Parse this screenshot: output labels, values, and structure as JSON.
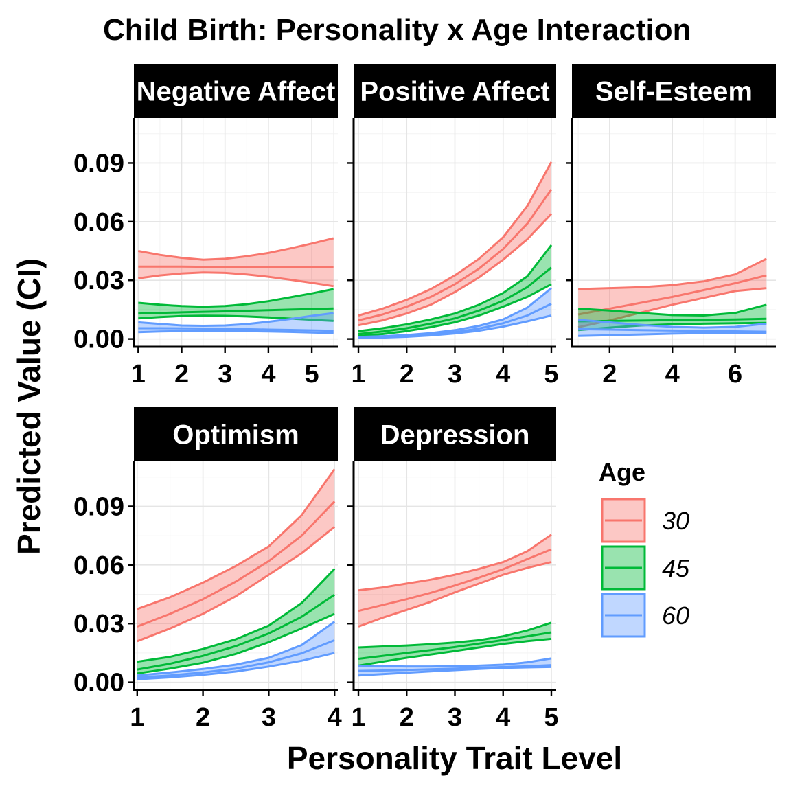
{
  "chart_data": {
    "type": "line",
    "title": "Child Birth: Personality x Age Interaction",
    "xlabel": "Personality Trait Level",
    "ylabel": "Predicted Value (CI)",
    "ylim": [
      -0.004,
      0.113
    ],
    "y_ticks": [
      0.0,
      0.03,
      0.06,
      0.09
    ],
    "y_tick_labels": [
      "0.00",
      "0.03",
      "0.06",
      "0.09"
    ],
    "legend": {
      "title": "Age",
      "position": "right",
      "entries": [
        {
          "label": "30",
          "color": "#F8766D"
        },
        {
          "label": "45",
          "color": "#00BA38"
        },
        {
          "label": "60",
          "color": "#619CFF"
        }
      ]
    },
    "panels": [
      {
        "name": "Negative Affect",
        "strip_label": "Negative Affect",
        "xlim": [
          0.9,
          5.6
        ],
        "x_ticks": [
          1,
          2,
          3,
          4,
          5
        ],
        "x": [
          1,
          1.5,
          2,
          2.5,
          3,
          3.5,
          4,
          4.5,
          5,
          5.5
        ],
        "series": [
          {
            "name": "30",
            "color": "#F8766D",
            "fit": [
              0.037,
              0.037,
              0.037,
              0.0369,
              0.0369,
              0.0369,
              0.0368,
              0.0368,
              0.0368,
              0.0368
            ],
            "lower": [
              0.031,
              0.0325,
              0.0335,
              0.034,
              0.0338,
              0.033,
              0.0318,
              0.0303,
              0.0287,
              0.027
            ],
            "upper": [
              0.045,
              0.043,
              0.0415,
              0.0405,
              0.041,
              0.0423,
              0.044,
              0.0463,
              0.0488,
              0.0515
            ]
          },
          {
            "name": "45",
            "color": "#00BA38",
            "fit": [
              0.013,
              0.0133,
              0.0136,
              0.0139,
              0.0141,
              0.0144,
              0.0147,
              0.015,
              0.0153,
              0.0156
            ],
            "lower": [
              0.0105,
              0.0112,
              0.0117,
              0.0119,
              0.0118,
              0.0115,
              0.011,
              0.0104,
              0.0098,
              0.0092
            ],
            "upper": [
              0.0185,
              0.0175,
              0.0168,
              0.0165,
              0.0168,
              0.0178,
              0.0193,
              0.0213,
              0.0233,
              0.0255
            ]
          },
          {
            "name": "60",
            "color": "#619CFF",
            "fit": [
              0.0055,
              0.0055,
              0.0054,
              0.0053,
              0.0052,
              0.005,
              0.0048,
              0.0046,
              0.0044,
              0.0042
            ],
            "lower": [
              0.0035,
              0.0038,
              0.004,
              0.0041,
              0.0041,
              0.004,
              0.0038,
              0.0036,
              0.0033,
              0.003
            ],
            "upper": [
              0.0085,
              0.0077,
              0.0069,
              0.0067,
              0.0069,
              0.0076,
              0.0088,
              0.0102,
              0.0118,
              0.0132
            ]
          }
        ]
      },
      {
        "name": "Positive Affect",
        "strip_label": "Positive Affect",
        "xlim": [
          0.9,
          5.1
        ],
        "x_ticks": [
          1,
          2,
          3,
          4,
          5
        ],
        "x": [
          1,
          1.5,
          2,
          2.5,
          3,
          3.5,
          4,
          4.5,
          5
        ],
        "series": [
          {
            "name": "30",
            "color": "#F8766D",
            "fit": [
              0.0095,
              0.0125,
              0.0165,
              0.0215,
              0.028,
              0.036,
              0.046,
              0.059,
              0.0765
            ],
            "lower": [
              0.007,
              0.0095,
              0.013,
              0.0175,
              0.024,
              0.0315,
              0.0405,
              0.051,
              0.064
            ],
            "upper": [
              0.012,
              0.0155,
              0.02,
              0.0255,
              0.0325,
              0.041,
              0.052,
              0.068,
              0.0905
            ]
          },
          {
            "name": "45",
            "color": "#00BA38",
            "fit": [
              0.0025,
              0.0038,
              0.0055,
              0.0078,
              0.0105,
              0.0145,
              0.0195,
              0.0265,
              0.0365
            ],
            "lower": [
              0.0015,
              0.0025,
              0.004,
              0.006,
              0.0085,
              0.012,
              0.0165,
              0.0215,
              0.028
            ],
            "upper": [
              0.004,
              0.0055,
              0.0075,
              0.01,
              0.013,
              0.0175,
              0.0235,
              0.032,
              0.048
            ]
          },
          {
            "name": "60",
            "color": "#619CFF",
            "fit": [
              0.0006,
              0.001,
              0.0015,
              0.0023,
              0.0035,
              0.0053,
              0.008,
              0.012,
              0.018
            ],
            "lower": [
              0.0004,
              0.0007,
              0.0011,
              0.0018,
              0.0028,
              0.0042,
              0.0063,
              0.009,
              0.012
            ],
            "upper": [
              0.001,
              0.0014,
              0.002,
              0.003,
              0.0045,
              0.0067,
              0.01,
              0.016,
              0.026
            ]
          }
        ]
      },
      {
        "name": "Self-Esteem",
        "strip_label": "Self-Esteem",
        "xlim": [
          0.8,
          7.3
        ],
        "x_ticks": [
          2,
          4,
          6
        ],
        "x": [
          1,
          2,
          3,
          4,
          5,
          6,
          7
        ],
        "series": [
          {
            "name": "30",
            "color": "#F8766D",
            "fit": [
              0.0125,
              0.0155,
              0.0185,
              0.0215,
              0.025,
              0.0285,
              0.0325
            ],
            "lower": [
              0.006,
              0.0095,
              0.0135,
              0.0175,
              0.021,
              0.0245,
              0.026
            ],
            "upper": [
              0.0255,
              0.026,
              0.0265,
              0.0275,
              0.0295,
              0.033,
              0.041
            ]
          },
          {
            "name": "45",
            "color": "#00BA38",
            "fit": [
              0.009,
              0.0092,
              0.0094,
              0.0096,
              0.0098,
              0.01,
              0.0103
            ],
            "lower": [
              0.0045,
              0.0058,
              0.0069,
              0.0075,
              0.0078,
              0.008,
              0.0082
            ],
            "upper": [
              0.0155,
              0.0145,
              0.0133,
              0.0122,
              0.012,
              0.0133,
              0.0175
            ]
          },
          {
            "name": "60",
            "color": "#619CFF",
            "fit": [
              0.005,
              0.0048,
              0.0045,
              0.0043,
              0.0041,
              0.0039,
              0.0037
            ],
            "lower": [
              0.0015,
              0.0019,
              0.0023,
              0.0027,
              0.003,
              0.0031,
              0.0032
            ],
            "upper": [
              0.0098,
              0.0085,
              0.0072,
              0.0062,
              0.0058,
              0.0062,
              0.0078
            ]
          }
        ]
      },
      {
        "name": "Optimism",
        "strip_label": "Optimism",
        "xlim": [
          0.95,
          4.05
        ],
        "x_ticks": [
          1,
          2,
          3,
          4
        ],
        "x": [
          1,
          1.5,
          2,
          2.5,
          3,
          3.5,
          4
        ],
        "series": [
          {
            "name": "30",
            "color": "#F8766D",
            "fit": [
              0.0285,
              0.035,
              0.0425,
              0.0515,
              0.062,
              0.075,
              0.0925
            ],
            "lower": [
              0.021,
              0.0275,
              0.035,
              0.044,
              0.055,
              0.066,
              0.0795
            ],
            "upper": [
              0.0375,
              0.0435,
              0.051,
              0.0595,
              0.0695,
              0.0855,
              0.109
            ]
          },
          {
            "name": "45",
            "color": "#00BA38",
            "fit": [
              0.0065,
              0.0095,
              0.0135,
              0.0185,
              0.025,
              0.0335,
              0.0448
            ],
            "lower": [
              0.0045,
              0.007,
              0.01,
              0.0145,
              0.0205,
              0.0275,
              0.035
            ],
            "upper": [
              0.0105,
              0.013,
              0.017,
              0.022,
              0.029,
              0.0405,
              0.058
            ]
          },
          {
            "name": "60",
            "color": "#619CFF",
            "fit": [
              0.0025,
              0.0035,
              0.005,
              0.007,
              0.0102,
              0.0148,
              0.0215
            ],
            "lower": [
              0.0015,
              0.0025,
              0.0038,
              0.0055,
              0.008,
              0.011,
              0.015
            ],
            "upper": [
              0.0035,
              0.005,
              0.0068,
              0.009,
              0.0125,
              0.019,
              0.031
            ]
          }
        ]
      },
      {
        "name": "Depression",
        "strip_label": "Depression",
        "xlim": [
          0.9,
          5.1
        ],
        "x_ticks": [
          1,
          2,
          3,
          4,
          5
        ],
        "x": [
          1,
          1.5,
          2,
          2.5,
          3,
          3.5,
          4,
          4.5,
          5
        ],
        "series": [
          {
            "name": "30",
            "color": "#F8766D",
            "fit": [
              0.0365,
              0.0395,
              0.0425,
              0.0458,
              0.0495,
              0.0535,
              0.0578,
              0.063,
              0.068
            ],
            "lower": [
              0.0285,
              0.033,
              0.037,
              0.0412,
              0.046,
              0.0505,
              0.055,
              0.0585,
              0.0615
            ],
            "upper": [
              0.047,
              0.0485,
              0.0505,
              0.0525,
              0.055,
              0.058,
              0.0615,
              0.067,
              0.0755
            ]
          },
          {
            "name": "45",
            "color": "#00BA38",
            "fit": [
              0.012,
              0.0135,
              0.015,
              0.0165,
              0.018,
              0.0198,
              0.0216,
              0.0235,
              0.0255
            ],
            "lower": [
              0.0085,
              0.0105,
              0.0125,
              0.0142,
              0.016,
              0.0178,
              0.0196,
              0.021,
              0.0222
            ],
            "upper": [
              0.0178,
              0.0183,
              0.0188,
              0.0195,
              0.0203,
              0.0215,
              0.0235,
              0.0265,
              0.0305
            ]
          },
          {
            "name": "60",
            "color": "#619CFF",
            "fit": [
              0.0058,
              0.006,
              0.0063,
              0.0066,
              0.007,
              0.0074,
              0.0078,
              0.0082,
              0.0088
            ],
            "lower": [
              0.0035,
              0.0042,
              0.0049,
              0.0056,
              0.0062,
              0.0068,
              0.0073,
              0.0076,
              0.0078
            ],
            "upper": [
              0.0085,
              0.0083,
              0.0081,
              0.0081,
              0.0082,
              0.0085,
              0.009,
              0.0102,
              0.0122
            ]
          }
        ]
      }
    ]
  }
}
